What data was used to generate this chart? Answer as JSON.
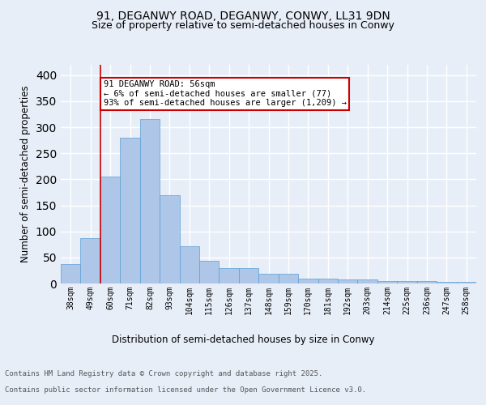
{
  "title1": "91, DEGANWY ROAD, DEGANWY, CONWY, LL31 9DN",
  "title2": "Size of property relative to semi-detached houses in Conwy",
  "xlabel": "Distribution of semi-detached houses by size in Conwy",
  "ylabel": "Number of semi-detached properties",
  "footer1": "Contains HM Land Registry data © Crown copyright and database right 2025.",
  "footer2": "Contains public sector information licensed under the Open Government Licence v3.0.",
  "annotation_line1": "91 DEGANWY ROAD: 56sqm",
  "annotation_line2": "← 6% of semi-detached houses are smaller (77)",
  "annotation_line3": "93% of semi-detached houses are larger (1,209) →",
  "categories": [
    "38sqm",
    "49sqm",
    "60sqm",
    "71sqm",
    "82sqm",
    "93sqm",
    "104sqm",
    "115sqm",
    "126sqm",
    "137sqm",
    "148sqm",
    "159sqm",
    "170sqm",
    "181sqm",
    "192sqm",
    "203sqm",
    "214sqm",
    "225sqm",
    "236sqm",
    "247sqm",
    "258sqm"
  ],
  "values": [
    38,
    87,
    205,
    280,
    315,
    170,
    72,
    44,
    29,
    29,
    18,
    18,
    10,
    10,
    8,
    8,
    5,
    5,
    5,
    3,
    3
  ],
  "bar_color": "#aec6e8",
  "bar_edge_color": "#5a9fd4",
  "bar_edge_width": 0.5,
  "red_line_index": 2,
  "red_line_color": "#cc0000",
  "annotation_box_edge": "#cc0000",
  "annotation_box_face": "#ffffff",
  "ylim": [
    0,
    420
  ],
  "background_color": "#e8eef8",
  "plot_bg_color": "#e8eef8",
  "grid_color": "#ffffff",
  "title_fontsize": 10,
  "subtitle_fontsize": 9,
  "axis_label_fontsize": 8.5,
  "tick_fontsize": 7,
  "footer_fontsize": 6.5,
  "annotation_fontsize": 7.5
}
